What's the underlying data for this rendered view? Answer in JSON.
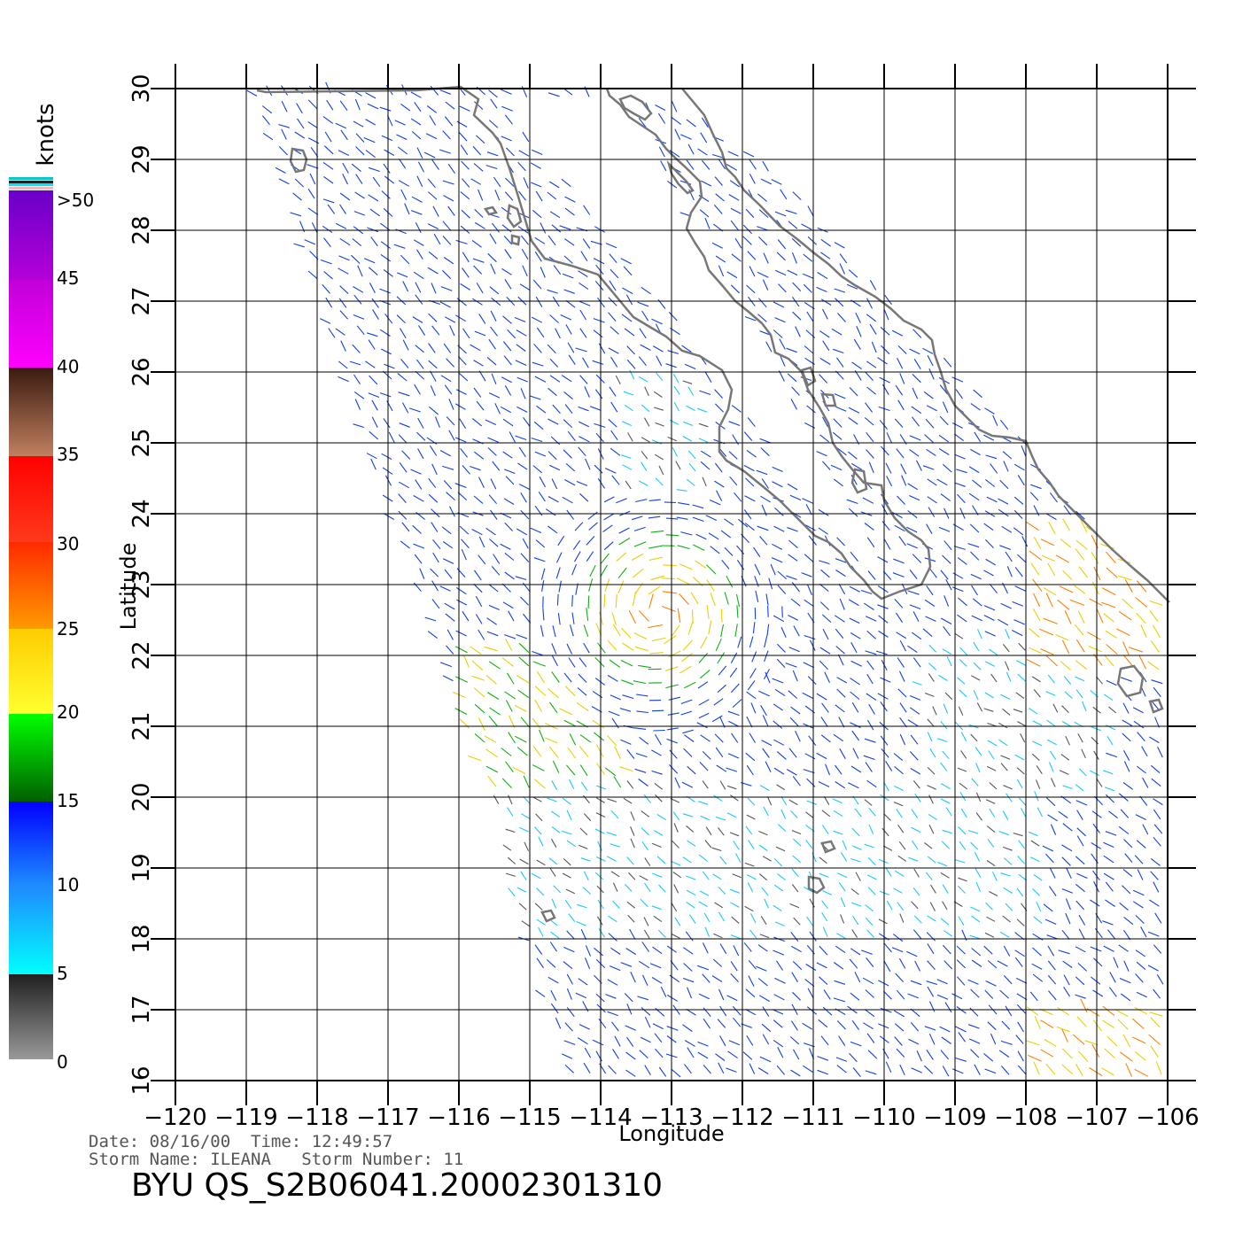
{
  "map": {
    "lat_ticks": [
      "16",
      "17",
      "18",
      "19",
      "20",
      "21",
      "22",
      "23",
      "24",
      "25",
      "26",
      "27",
      "28",
      "29",
      "30"
    ],
    "lon_ticks": [
      "−120",
      "−119",
      "−118",
      "−117",
      "−116",
      "−115",
      "−114",
      "−113",
      "−112",
      "−111",
      "−110",
      "−109",
      "−108",
      "−107",
      "−106"
    ],
    "lat_range": [
      16,
      30
    ],
    "lon_range": [
      -120,
      -105.6
    ],
    "xlabel": "Longitude",
    "ylabel": "Latitude",
    "land_color": "#777777",
    "grid_color": "#000000"
  },
  "colorbar": {
    "unit": "knots",
    "labels": [
      ">50",
      "45",
      "40",
      "35",
      "30",
      "25",
      "20",
      "15",
      "10",
      "5",
      "0"
    ],
    "colors": {
      "0-5": "#888888",
      "5-10": "#00e8ff",
      "10-15": "#0000ff",
      "15-20": "#00c800",
      "20-25": "#ffee00",
      "25-30": "#ff7a00",
      "30-35": "#ff1a00",
      "35-40": "#a0522d",
      "40-45": "#ff00ff",
      "45-50": "#7b00c8"
    }
  },
  "info": {
    "line1": "Date: 08/16/00  Time: 12:49:57",
    "line2": "Storm Name: ILEANA   Storm Number: 11",
    "file_id": "BYU QS_S2B06041.20002301310"
  }
}
